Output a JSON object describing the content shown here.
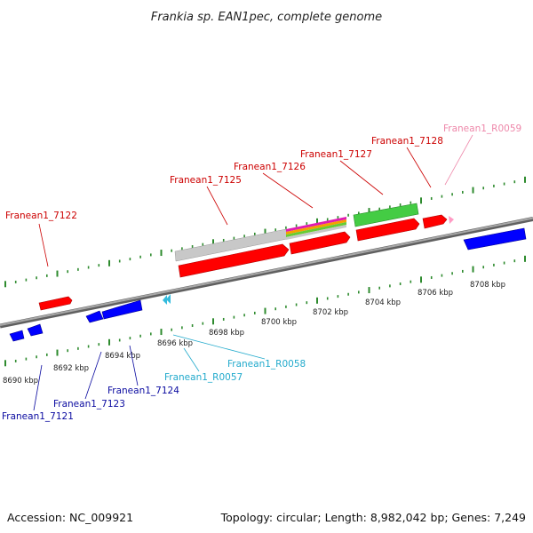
{
  "title": "Frankia sp. EAN1pec, complete genome",
  "footer": {
    "accession": "Accession: NC_009921",
    "topology": "Topology: circular; Length: 8,982,042 bp; Genes: 7,249"
  },
  "colors": {
    "cds_forward": "#ff0000",
    "cds_reverse": "#0000ff",
    "rna_forward": "#ff9bc4",
    "rna_reverse": "#33bbdd",
    "pseudo": "#c0c0c0",
    "ticks": "#2e8b2e",
    "backbone": "#808080",
    "label_forward": "#cc0000",
    "label_reverse": "#0a0aa0",
    "label_rna_forward": "#ee88aa",
    "label_rna_reverse": "#22aacc"
  },
  "scale_labels": [
    "8690 kbp",
    "8692 kbp",
    "8694 kbp",
    "8696 kbp",
    "8698 kbp",
    "8700 kbp",
    "8702 kbp",
    "8704 kbp",
    "8706 kbp",
    "8708 kbp"
  ],
  "forward_labels": [
    "Franean1_7122",
    "Franean1_7125",
    "Franean1_7126",
    "Franean1_7127",
    "Franean1_7128",
    "Franean1_R0059"
  ],
  "reverse_labels": [
    "Franean1_7121",
    "Franean1_7123",
    "Franean1_7124",
    "Franean1_R0057",
    "Franean1_R0058"
  ]
}
